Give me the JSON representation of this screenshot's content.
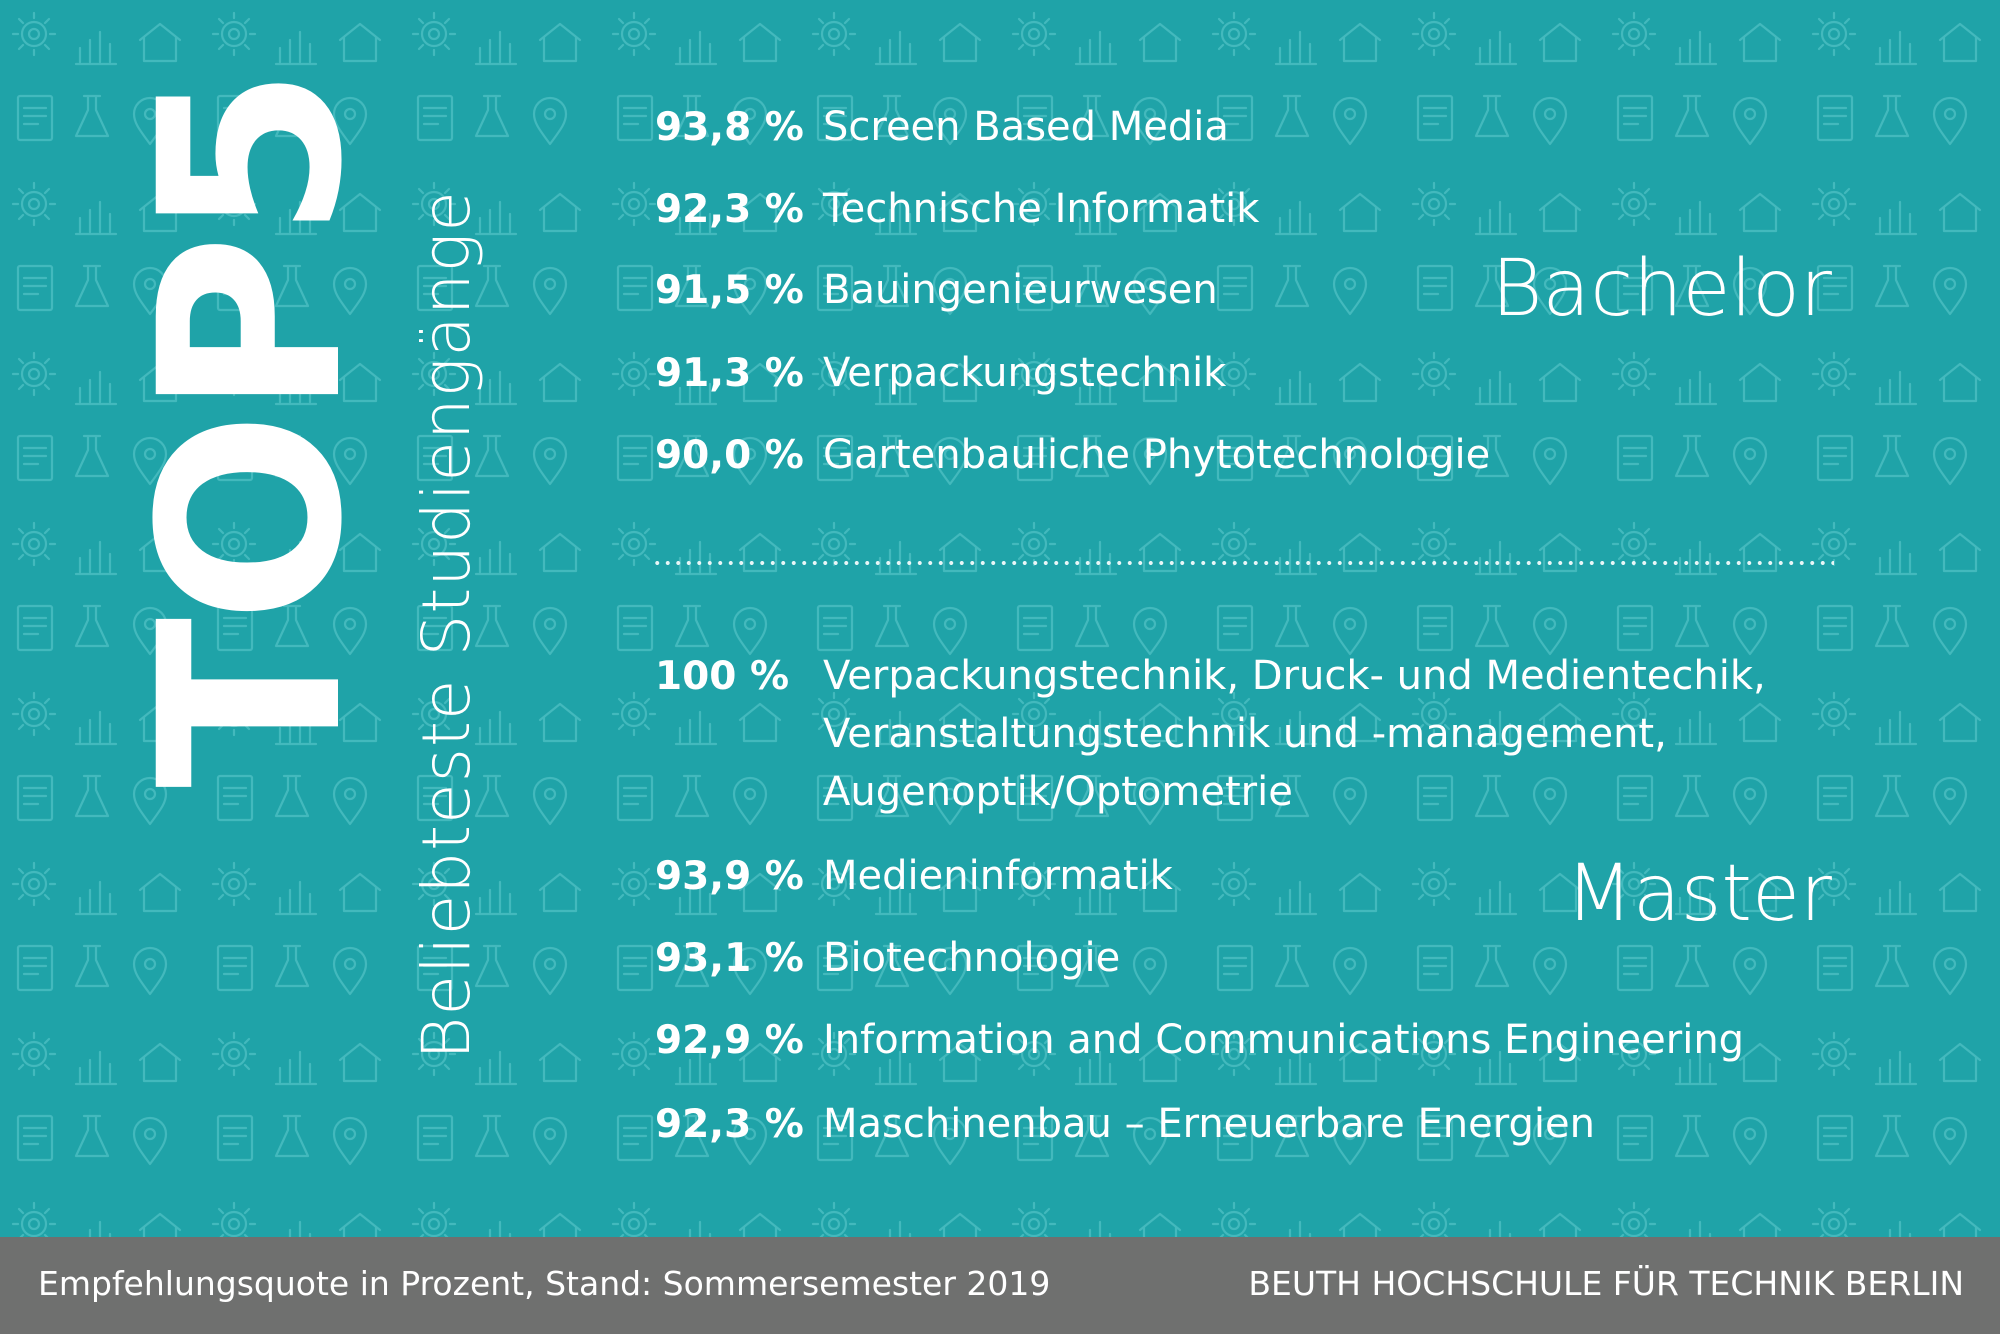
{
  "heading": {
    "title": "TOP5",
    "subtitle": "Beliebteste Studiengänge"
  },
  "bachelor": {
    "label": "Bachelor",
    "items": [
      {
        "pct": "93,8 %",
        "name": "Screen Based Media"
      },
      {
        "pct": "92,3 %",
        "name": "Technische Informatik"
      },
      {
        "pct": "91,5 %",
        "name": "Bauingenieurwesen"
      },
      {
        "pct": "91,3 %",
        "name": "Verpackungstechnik"
      },
      {
        "pct": "90,0 %",
        "name": "Gartenbauliche Phytotechnologie"
      }
    ]
  },
  "master": {
    "label": "Master",
    "first": {
      "pct": "100 %",
      "lines": [
        "Verpackungstechnik, Druck- und Medientechik,",
        "Veranstaltungstechnik und -management,",
        "Augenoptik/Optometrie"
      ]
    },
    "items": [
      {
        "pct": "93,9 %",
        "name": "Medieninformatik"
      },
      {
        "pct": "93,1 %",
        "name": "Biotechnologie"
      },
      {
        "pct": "92,9 %",
        "name": "Information and Communications Engineering"
      },
      {
        "pct": "92,3 %",
        "name": "Maschinenbau – Erneuerbare Energien"
      }
    ]
  },
  "footer": {
    "note": "Empfehlungsquote in Prozent, Stand: Sommersemester 2019",
    "brand": "BEUTH HOCHSCHULE FÜR TECHNIK BERLIN"
  },
  "colors": {
    "background": "#1fa3a8",
    "footer": "#6f706f",
    "text": "#ffffff"
  }
}
